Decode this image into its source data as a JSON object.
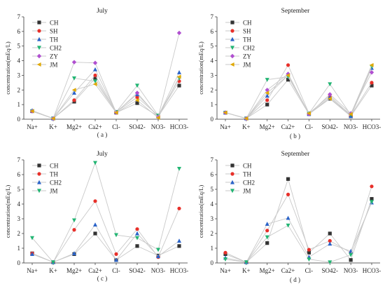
{
  "chart_data": [
    {
      "type": "line",
      "title": "July",
      "panel_label": "( a )",
      "ylabel": "concentration(mEq/L)",
      "xlabel": "",
      "categories": [
        "Na+",
        "K+",
        "Mg2+",
        "Ca2+",
        "Cl-",
        "SO42-",
        "NO3-",
        "HCO3-"
      ],
      "ylim": [
        0,
        7
      ],
      "yticks": [
        0,
        1,
        2,
        3,
        4,
        5,
        6,
        7
      ],
      "legend_position": "top-left",
      "series": [
        {
          "name": "CH",
          "color": "#333333",
          "marker": "square",
          "values": [
            0.55,
            0.05,
            1.2,
            2.8,
            0.45,
            1.1,
            0.2,
            2.3
          ]
        },
        {
          "name": "SH",
          "color": "#e8302a",
          "marker": "circle",
          "values": [
            0.55,
            0.05,
            1.3,
            3.0,
            0.5,
            1.5,
            0.25,
            2.6
          ]
        },
        {
          "name": "TH",
          "color": "#2a63c9",
          "marker": "triangle-up",
          "values": [
            0.6,
            0.05,
            1.8,
            3.4,
            0.5,
            1.7,
            0.2,
            3.2
          ]
        },
        {
          "name": "CH2",
          "color": "#22b573",
          "marker": "triangle-down",
          "values": [
            0.55,
            0.05,
            2.8,
            2.6,
            0.5,
            2.3,
            0.25,
            2.8
          ]
        },
        {
          "name": "ZY",
          "color": "#b04fd0",
          "marker": "diamond",
          "values": [
            0.55,
            0.05,
            3.9,
            3.85,
            0.45,
            1.8,
            0.15,
            5.9
          ]
        },
        {
          "name": "JM",
          "color": "#e0a800",
          "marker": "triangle-left",
          "values": [
            0.55,
            0.05,
            2.0,
            2.4,
            0.45,
            1.3,
            0.1,
            2.9
          ]
        }
      ]
    },
    {
      "type": "line",
      "title": "September",
      "panel_label": "( b )",
      "ylabel": "concentration(mEq/L)",
      "xlabel": "",
      "categories": [
        "Na+",
        "K+",
        "Mg2+",
        "Ca2+",
        "Cl-",
        "SO42-",
        "NO3-",
        "HCO3-"
      ],
      "ylim": [
        0,
        7
      ],
      "yticks": [
        0,
        1,
        2,
        3,
        4,
        5,
        6,
        7
      ],
      "legend_position": "top-left",
      "series": [
        {
          "name": "CH",
          "color": "#333333",
          "marker": "square",
          "values": [
            0.45,
            0.05,
            1.0,
            2.7,
            0.35,
            1.4,
            0.2,
            2.3
          ]
        },
        {
          "name": "SH",
          "color": "#e8302a",
          "marker": "circle",
          "values": [
            0.45,
            0.05,
            1.3,
            3.7,
            0.4,
            1.6,
            0.25,
            2.5
          ]
        },
        {
          "name": "TH",
          "color": "#2a63c9",
          "marker": "triangle-up",
          "values": [
            0.45,
            0.05,
            1.6,
            3.0,
            0.35,
            1.5,
            0.2,
            3.5
          ]
        },
        {
          "name": "CH2",
          "color": "#22b573",
          "marker": "triangle-down",
          "values": [
            0.45,
            0.05,
            2.7,
            2.9,
            0.4,
            2.4,
            0.3,
            3.6
          ]
        },
        {
          "name": "ZY",
          "color": "#b04fd0",
          "marker": "diamond",
          "values": [
            0.45,
            0.05,
            2.0,
            3.1,
            0.35,
            1.7,
            0.4,
            3.2
          ]
        },
        {
          "name": "JM",
          "color": "#e0a800",
          "marker": "triangle-left",
          "values": [
            0.45,
            0.05,
            1.8,
            3.0,
            0.4,
            1.4,
            0.35,
            3.7
          ]
        }
      ]
    },
    {
      "type": "line",
      "title": "July",
      "panel_label": "( c )",
      "ylabel": "concentration(mEq/L)",
      "xlabel": "",
      "categories": [
        "Na+",
        "K+",
        "Mg2+",
        "Ca2+",
        "Cl-",
        "SO42-",
        "NO3-",
        "HCO3-"
      ],
      "ylim": [
        0,
        7
      ],
      "yticks": [
        0,
        1,
        2,
        3,
        4,
        5,
        6,
        7
      ],
      "legend_position": "top-left",
      "series": [
        {
          "name": "CH",
          "color": "#333333",
          "marker": "square",
          "values": [
            0.65,
            0.05,
            0.6,
            2.0,
            0.2,
            1.15,
            0.5,
            1.15
          ]
        },
        {
          "name": "TH",
          "color": "#e8302a",
          "marker": "circle",
          "values": [
            0.65,
            0.05,
            2.25,
            4.2,
            0.6,
            2.3,
            0.4,
            3.7
          ]
        },
        {
          "name": "CH2",
          "color": "#2a63c9",
          "marker": "triangle-up",
          "values": [
            0.6,
            0.05,
            0.65,
            2.6,
            0.2,
            2.0,
            0.45,
            1.5
          ]
        },
        {
          "name": "JM",
          "color": "#22b573",
          "marker": "triangle-down",
          "values": [
            1.7,
            0.05,
            2.9,
            6.8,
            1.9,
            1.7,
            0.9,
            6.4
          ]
        }
      ]
    },
    {
      "type": "line",
      "title": "September",
      "panel_label": "( d )",
      "ylabel": "concentration(mEq/L)",
      "xlabel": "",
      "categories": [
        "Na+",
        "K+",
        "Mg2+",
        "Ca2+",
        "Cl-",
        "SO42-",
        "NO3-",
        "HCO3-"
      ],
      "ylim": [
        0,
        7
      ],
      "yticks": [
        0,
        1,
        2,
        3,
        4,
        5,
        6,
        7
      ],
      "legend_position": "top-left",
      "series": [
        {
          "name": "CH",
          "color": "#333333",
          "marker": "square",
          "values": [
            0.6,
            0.05,
            1.35,
            5.7,
            0.7,
            2.0,
            0.2,
            4.35
          ]
        },
        {
          "name": "TH",
          "color": "#e8302a",
          "marker": "circle",
          "values": [
            0.7,
            0.05,
            2.2,
            4.65,
            0.9,
            1.5,
            0.7,
            5.2
          ]
        },
        {
          "name": "CH2",
          "color": "#2a63c9",
          "marker": "triangle-up",
          "values": [
            0.35,
            0.05,
            2.65,
            3.05,
            0.4,
            1.3,
            0.8,
            4.1
          ]
        },
        {
          "name": "JM",
          "color": "#22b573",
          "marker": "triangle-down",
          "values": [
            0.25,
            0.05,
            1.75,
            2.55,
            0.25,
            0.05,
            0.55,
            4.15
          ]
        }
      ]
    }
  ]
}
